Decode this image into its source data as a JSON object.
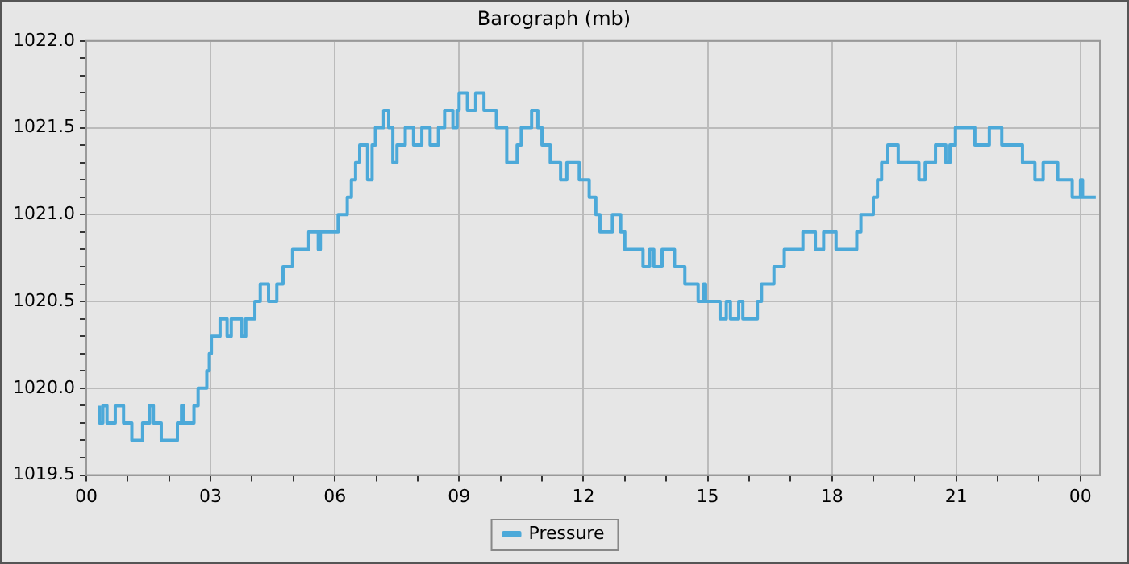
{
  "chart_data": {
    "type": "step",
    "title": "Barograph (mb)",
    "xlim": [
      0,
      24.47
    ],
    "ylim": [
      1019.5,
      1022.0
    ],
    "xticks": [
      {
        "value": 0,
        "label": "00"
      },
      {
        "value": 1,
        "label": null
      },
      {
        "value": 2,
        "label": null
      },
      {
        "value": 3,
        "label": "03"
      },
      {
        "value": 4,
        "label": null
      },
      {
        "value": 5,
        "label": null
      },
      {
        "value": 6,
        "label": "06"
      },
      {
        "value": 7,
        "label": null
      },
      {
        "value": 8,
        "label": null
      },
      {
        "value": 9,
        "label": "09"
      },
      {
        "value": 10,
        "label": null
      },
      {
        "value": 11,
        "label": null
      },
      {
        "value": 12,
        "label": "12"
      },
      {
        "value": 13,
        "label": null
      },
      {
        "value": 14,
        "label": null
      },
      {
        "value": 15,
        "label": "15"
      },
      {
        "value": 16,
        "label": null
      },
      {
        "value": 17,
        "label": null
      },
      {
        "value": 18,
        "label": "18"
      },
      {
        "value": 19,
        "label": null
      },
      {
        "value": 20,
        "label": null
      },
      {
        "value": 21,
        "label": "21"
      },
      {
        "value": 22,
        "label": null
      },
      {
        "value": 23,
        "label": null
      },
      {
        "value": 24,
        "label": "00"
      }
    ],
    "yticks": [
      {
        "value": 1019.5,
        "label": "1019.5"
      },
      {
        "value": 1019.6,
        "label": null
      },
      {
        "value": 1019.7,
        "label": null
      },
      {
        "value": 1019.8,
        "label": null
      },
      {
        "value": 1019.9,
        "label": null
      },
      {
        "value": 1020.0,
        "label": "1020.0"
      },
      {
        "value": 1020.1,
        "label": null
      },
      {
        "value": 1020.2,
        "label": null
      },
      {
        "value": 1020.3,
        "label": null
      },
      {
        "value": 1020.4,
        "label": null
      },
      {
        "value": 1020.5,
        "label": "1020.5"
      },
      {
        "value": 1020.6,
        "label": null
      },
      {
        "value": 1020.7,
        "label": null
      },
      {
        "value": 1020.8,
        "label": null
      },
      {
        "value": 1020.9,
        "label": null
      },
      {
        "value": 1021.0,
        "label": "1021.0"
      },
      {
        "value": 1021.1,
        "label": null
      },
      {
        "value": 1021.2,
        "label": null
      },
      {
        "value": 1021.3,
        "label": null
      },
      {
        "value": 1021.4,
        "label": null
      },
      {
        "value": 1021.5,
        "label": "1021.5"
      },
      {
        "value": 1021.6,
        "label": null
      },
      {
        "value": 1021.7,
        "label": null
      },
      {
        "value": 1021.8,
        "label": null
      },
      {
        "value": 1021.9,
        "label": null
      },
      {
        "value": 1022.0,
        "label": "1022.0"
      }
    ],
    "grid": true,
    "legend": "bottom",
    "marker": "none",
    "line_style": "solid",
    "series": [
      {
        "name": "Pressure",
        "color": "#4ca9d9",
        "x": [
          0.32,
          0.4,
          0.5,
          0.7,
          0.9,
          1.1,
          1.36,
          1.53,
          1.62,
          1.81,
          2.2,
          2.3,
          2.35,
          2.6,
          2.7,
          2.91,
          2.97,
          3.02,
          3.23,
          3.4,
          3.5,
          3.75,
          3.85,
          4.07,
          4.2,
          4.4,
          4.6,
          4.75,
          4.98,
          5.37,
          5.6,
          5.65,
          6.08,
          6.3,
          6.4,
          6.5,
          6.6,
          6.79,
          6.9,
          6.98,
          7.18,
          7.3,
          7.4,
          7.5,
          7.7,
          7.9,
          8.1,
          8.3,
          8.5,
          8.65,
          8.85,
          8.95,
          9.0,
          9.2,
          9.4,
          9.6,
          9.9,
          10.15,
          10.4,
          10.5,
          10.75,
          10.9,
          11.0,
          11.2,
          11.45,
          11.6,
          11.9,
          12.14,
          12.3,
          12.4,
          12.7,
          12.9,
          13.0,
          13.44,
          13.6,
          13.7,
          13.9,
          14.2,
          14.45,
          14.77,
          14.9,
          14.95,
          15.3,
          15.45,
          15.55,
          15.75,
          15.85,
          16.2,
          16.3,
          16.6,
          16.85,
          17.3,
          17.6,
          17.8,
          18.1,
          18.6,
          18.7,
          19.0,
          19.1,
          19.2,
          19.35,
          19.6,
          20.1,
          20.25,
          20.5,
          20.75,
          20.85,
          20.98,
          21.45,
          21.8,
          22.1,
          22.6,
          22.9,
          23.1,
          23.45,
          23.8,
          24.0,
          24.05,
          24.33,
          24.37
        ],
        "values": [
          1019.9,
          1019.8,
          1019.9,
          1019.8,
          1019.9,
          1019.8,
          1019.7,
          1019.8,
          1019.9,
          1019.8,
          1019.7,
          1019.8,
          1019.9,
          1019.8,
          1019.9,
          1020.0,
          1020.1,
          1020.2,
          1020.3,
          1020.4,
          1020.3,
          1020.4,
          1020.3,
          1020.4,
          1020.5,
          1020.6,
          1020.5,
          1020.6,
          1020.7,
          1020.8,
          1020.9,
          1020.8,
          1020.9,
          1021.0,
          1021.1,
          1021.2,
          1021.3,
          1021.4,
          1021.2,
          1021.4,
          1021.5,
          1021.6,
          1021.5,
          1021.3,
          1021.4,
          1021.5,
          1021.4,
          1021.5,
          1021.4,
          1021.5,
          1021.6,
          1021.5,
          1021.6,
          1021.7,
          1021.6,
          1021.7,
          1021.6,
          1021.5,
          1021.3,
          1021.4,
          1021.5,
          1021.6,
          1021.5,
          1021.4,
          1021.3,
          1021.2,
          1021.3,
          1021.2,
          1021.1,
          1021.0,
          1020.9,
          1021.0,
          1020.9,
          1020.8,
          1020.7,
          1020.8,
          1020.7,
          1020.8,
          1020.7,
          1020.6,
          1020.5,
          1020.6,
          1020.5,
          1020.4,
          1020.5,
          1020.4,
          1020.5,
          1020.4,
          1020.5,
          1020.6,
          1020.7,
          1020.8,
          1020.9,
          1020.8,
          1020.9,
          1020.8,
          1020.9,
          1021.0,
          1021.1,
          1021.2,
          1021.3,
          1021.4,
          1021.3,
          1021.2,
          1021.3,
          1021.4,
          1021.3,
          1021.4,
          1021.5,
          1021.4,
          1021.5,
          1021.4,
          1021.3,
          1021.2,
          1021.3,
          1021.2,
          1021.1,
          1021.2,
          1021.1,
          1021.1
        ]
      }
    ]
  }
}
